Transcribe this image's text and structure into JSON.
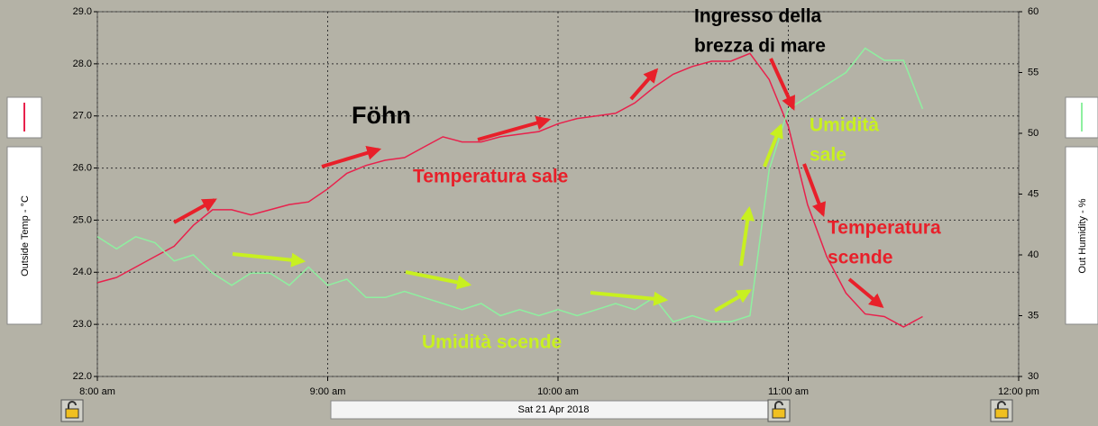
{
  "chart_data": {
    "type": "line",
    "xlabel": "Sat 21 Apr 2018",
    "x": [
      480,
      485,
      490,
      495,
      500,
      505,
      510,
      515,
      520,
      525,
      530,
      535,
      540,
      545,
      550,
      555,
      560,
      565,
      570,
      575,
      580,
      585,
      590,
      595,
      600,
      605,
      610,
      615,
      620,
      625,
      630,
      635,
      640,
      645,
      650,
      655,
      660,
      665,
      670,
      675,
      680,
      685,
      690,
      695
    ],
    "xlim": [
      480,
      720
    ],
    "xticks": [
      {
        "value": 480,
        "label": "8:00 am"
      },
      {
        "value": 540,
        "label": "9:00 am"
      },
      {
        "value": 600,
        "label": "10:00 am"
      },
      {
        "value": 660,
        "label": "11:00 am"
      },
      {
        "value": 720,
        "label": "12:00 pm"
      }
    ],
    "ylim": [
      22,
      29
    ],
    "yticks": [
      {
        "value": 22,
        "label": "22.0"
      },
      {
        "value": 23,
        "label": "23.0"
      },
      {
        "value": 24,
        "label": "24.0"
      },
      {
        "value": 25,
        "label": "25.0"
      },
      {
        "value": 26,
        "label": "26.0"
      },
      {
        "value": 27,
        "label": "27.0"
      },
      {
        "value": 28,
        "label": "28.0"
      },
      {
        "value": 29,
        "label": "29.0"
      }
    ],
    "y2lim": [
      30,
      60
    ],
    "y2ticks": [
      30,
      35,
      40,
      45,
      50,
      55,
      60
    ],
    "grid": true,
    "series": [
      {
        "name": "Outside Temp - °C",
        "color": "#e8214c",
        "values": [
          23.8,
          23.9,
          24.1,
          24.3,
          24.5,
          24.9,
          25.2,
          25.2,
          25.1,
          25.2,
          25.3,
          25.35,
          25.6,
          25.9,
          26.05,
          26.15,
          26.2,
          26.4,
          26.6,
          26.5,
          26.5,
          26.6,
          26.65,
          26.7,
          26.85,
          26.95,
          27.0,
          27.05,
          27.25,
          27.55,
          27.8,
          27.95,
          28.05,
          28.05,
          28.2,
          27.7,
          26.8,
          25.3,
          24.3,
          23.6,
          23.2,
          23.15,
          22.95,
          23.15
        ]
      },
      {
        "name": "Out Humidity - %",
        "color": "#8ef0a0",
        "axis": "y2",
        "values": [
          41.5,
          40.5,
          41.5,
          41.0,
          39.5,
          40.0,
          38.5,
          37.5,
          38.5,
          38.5,
          37.5,
          39.0,
          37.5,
          38.0,
          36.5,
          36.5,
          37.0,
          36.5,
          36.0,
          35.5,
          36.0,
          35.0,
          35.5,
          35.0,
          35.5,
          35.0,
          35.5,
          36.0,
          35.5,
          36.5,
          34.5,
          35.0,
          34.5,
          34.5,
          35.0,
          47.0,
          52.0,
          53.0,
          54.0,
          55.0,
          57.0,
          56.0,
          56.0,
          52.0
        ]
      }
    ],
    "annotations": [
      {
        "text": "Föhn",
        "color": "#000000"
      },
      {
        "text": "Temperatura sale",
        "color": "#e8202a"
      },
      {
        "text": "Umidità scende",
        "color": "#c8f020"
      },
      {
        "text": "Umidità",
        "color": "#c8f020"
      },
      {
        "text": "sale",
        "color": "#c8f020"
      },
      {
        "text": "Temperatura",
        "color": "#e8202a"
      },
      {
        "text": "scende",
        "color": "#e8202a"
      },
      {
        "text": "Ingresso della",
        "color": "#000000"
      },
      {
        "text": "brezza di mare",
        "color": "#000000"
      }
    ]
  }
}
